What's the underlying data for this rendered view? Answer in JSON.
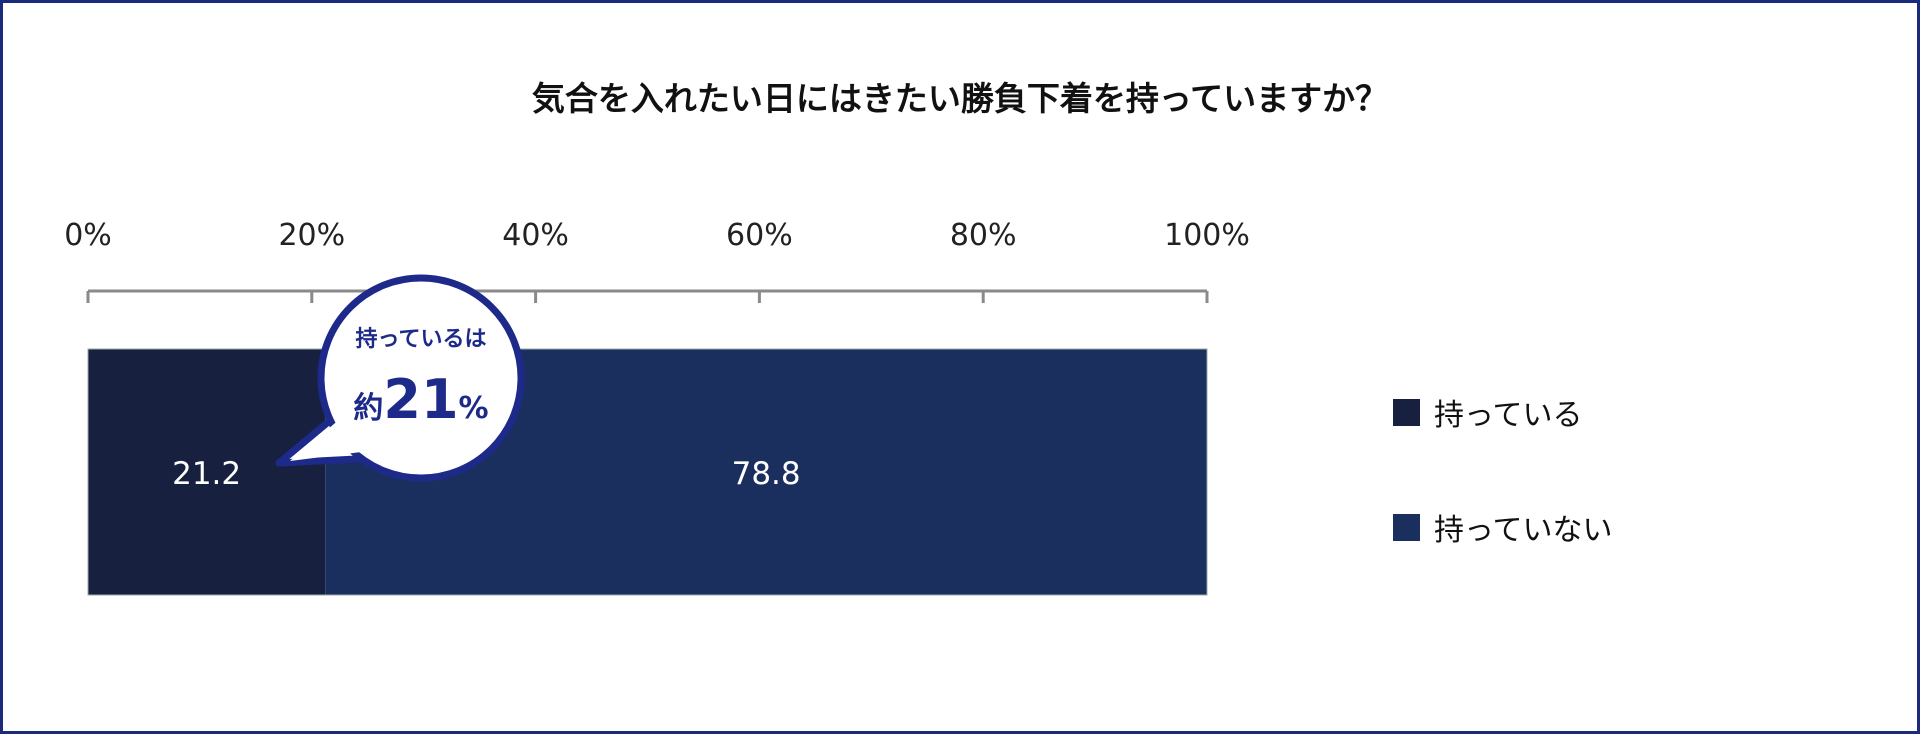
{
  "chart_data": {
    "type": "bar",
    "orientation": "horizontal-stacked",
    "title": "気合を入れたい日にはきたい勝負下着を持っていますか？",
    "xlim": [
      0,
      100
    ],
    "xticks": [
      "0%",
      "20%",
      "40%",
      "60%",
      "80%",
      "100%"
    ],
    "grid": false,
    "legend_placement": "right",
    "series": [
      {
        "name": "持っている",
        "values": [
          21.2
        ],
        "label": "21.2",
        "color": "#17213f"
      },
      {
        "name": "持っていない",
        "values": [
          78.8
        ],
        "label": "78.8",
        "color": "#1b2f5f"
      }
    ],
    "annotation": {
      "line1": "持っているは",
      "prefix": "約",
      "number": "21",
      "unit": "%",
      "color": "#1e2a8a"
    }
  }
}
